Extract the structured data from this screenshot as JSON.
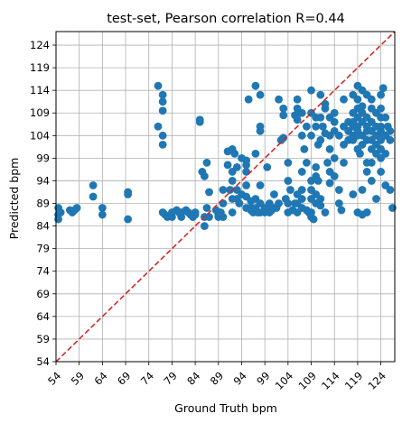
{
  "chart_data": {
    "type": "scatter",
    "title": "test-set, Pearson correlation R=0.44",
    "xlabel": "Ground Truth bpm",
    "ylabel": "Predicted bpm",
    "xlim": [
      54,
      127
    ],
    "ylim": [
      54,
      127
    ],
    "x_ticks": [
      "54",
      "59",
      "64",
      "69",
      "74",
      "79",
      "84",
      "89",
      "94",
      "99",
      "104",
      "109",
      "114",
      "119",
      "124"
    ],
    "y_ticks": [
      "54",
      "59",
      "64",
      "69",
      "74",
      "79",
      "84",
      "89",
      "94",
      "99",
      "104",
      "109",
      "114",
      "119",
      "124"
    ],
    "grid": true,
    "point_color": "#1f77b4",
    "identity_line_color": "#d62728",
    "points": [
      [
        54.5,
        88
      ],
      [
        54.5,
        86.5
      ],
      [
        54.5,
        85.5
      ],
      [
        55,
        87
      ],
      [
        57,
        87.5
      ],
      [
        57.5,
        87
      ],
      [
        58,
        87.5
      ],
      [
        58.5,
        88
      ],
      [
        62,
        93
      ],
      [
        62,
        90.5
      ],
      [
        64,
        88
      ],
      [
        64,
        86.5
      ],
      [
        69.5,
        91.5
      ],
      [
        69.5,
        91
      ],
      [
        69.5,
        85.5
      ],
      [
        76,
        115
      ],
      [
        76,
        106
      ],
      [
        77,
        113
      ],
      [
        77,
        111.5
      ],
      [
        77,
        109.5
      ],
      [
        77,
        104
      ],
      [
        77,
        102
      ],
      [
        77,
        87
      ],
      [
        77.5,
        86.5
      ],
      [
        78,
        86
      ],
      [
        79,
        86
      ],
      [
        79,
        87
      ],
      [
        80,
        87.5
      ],
      [
        80.5,
        87
      ],
      [
        81,
        87
      ],
      [
        81,
        86
      ],
      [
        82,
        87.5
      ],
      [
        82.5,
        87
      ],
      [
        83,
        86.5
      ],
      [
        83.5,
        86
      ],
      [
        84,
        86.5
      ],
      [
        84,
        87
      ],
      [
        85,
        107.5
      ],
      [
        85,
        107
      ],
      [
        85.5,
        96
      ],
      [
        86,
        95
      ],
      [
        86,
        86
      ],
      [
        86,
        84
      ],
      [
        86.5,
        98
      ],
      [
        86.5,
        88
      ],
      [
        87,
        91.5
      ],
      [
        87,
        86
      ],
      [
        88.5,
        87.5
      ],
      [
        89,
        86.5
      ],
      [
        89,
        86
      ],
      [
        89.5,
        87
      ],
      [
        90,
        92
      ],
      [
        90,
        89
      ],
      [
        90,
        86
      ],
      [
        91,
        97.5
      ],
      [
        91,
        100.5
      ],
      [
        91.5,
        92
      ],
      [
        92,
        101
      ],
      [
        92,
        96
      ],
      [
        92,
        94
      ],
      [
        92,
        90
      ],
      [
        92,
        87
      ],
      [
        92.5,
        100
      ],
      [
        93,
        97
      ],
      [
        93,
        92
      ],
      [
        93,
        90
      ],
      [
        93.5,
        89
      ],
      [
        94,
        99
      ],
      [
        94,
        91
      ],
      [
        95,
        98.5
      ],
      [
        95,
        97.5
      ],
      [
        95,
        96
      ],
      [
        95,
        93
      ],
      [
        95,
        90.5
      ],
      [
        95,
        88
      ],
      [
        95.5,
        112
      ],
      [
        96,
        89.5
      ],
      [
        96,
        88
      ],
      [
        96,
        87.5
      ],
      [
        96.5,
        87
      ],
      [
        97,
        115
      ],
      [
        97,
        100
      ],
      [
        97,
        90
      ],
      [
        97,
        88
      ],
      [
        97.5,
        87
      ],
      [
        98,
        113
      ],
      [
        98,
        106
      ],
      [
        98,
        105
      ],
      [
        98,
        93
      ],
      [
        98,
        89
      ],
      [
        98,
        87
      ],
      [
        99,
        87
      ],
      [
        99,
        88
      ],
      [
        99.5,
        97
      ],
      [
        100,
        89
      ],
      [
        100,
        87
      ],
      [
        100,
        88.5
      ],
      [
        100.5,
        87.5
      ],
      [
        101,
        91
      ],
      [
        101,
        88
      ],
      [
        101.5,
        88
      ],
      [
        102,
        112
      ],
      [
        102,
        89
      ],
      [
        102.5,
        103
      ],
      [
        103,
        110
      ],
      [
        103,
        108.5
      ],
      [
        103,
        103.5
      ],
      [
        103.5,
        90
      ],
      [
        104,
        98
      ],
      [
        104,
        94
      ],
      [
        104,
        89
      ],
      [
        104,
        87
      ],
      [
        104.5,
        92
      ],
      [
        105,
        87.5
      ],
      [
        105.5,
        89
      ],
      [
        105.5,
        108.5
      ],
      [
        106,
        112
      ],
      [
        106,
        110
      ],
      [
        106,
        107.5
      ],
      [
        106,
        91
      ],
      [
        106,
        89
      ],
      [
        106,
        87
      ],
      [
        106.5,
        109
      ],
      [
        107,
        109
      ],
      [
        107,
        104
      ],
      [
        107,
        96
      ],
      [
        107,
        92
      ],
      [
        107,
        90
      ],
      [
        107,
        88
      ],
      [
        107.5,
        101
      ],
      [
        108,
        106
      ],
      [
        108,
        98
      ],
      [
        108,
        87.5
      ],
      [
        108.5,
        87
      ],
      [
        109,
        114
      ],
      [
        109,
        109
      ],
      [
        109,
        104
      ],
      [
        109,
        94
      ],
      [
        109,
        92
      ],
      [
        109,
        90
      ],
      [
        109,
        87
      ],
      [
        109,
        86
      ],
      [
        109.5,
        85.5
      ],
      [
        110,
        108
      ],
      [
        110,
        106
      ],
      [
        110,
        97
      ],
      [
        110,
        95
      ],
      [
        110,
        91
      ],
      [
        110,
        89
      ],
      [
        110.5,
        102
      ],
      [
        110.5,
        94
      ],
      [
        111,
        113
      ],
      [
        111,
        108
      ],
      [
        111,
        103
      ],
      [
        111,
        90
      ],
      [
        111,
        88.5
      ],
      [
        111.5,
        106
      ],
      [
        112,
        111
      ],
      [
        112,
        110
      ],
      [
        112,
        104.5
      ],
      [
        112,
        87
      ],
      [
        112.5,
        98
      ],
      [
        113,
        108
      ],
      [
        113,
        104
      ],
      [
        113,
        101
      ],
      [
        113,
        96
      ],
      [
        113,
        93.5
      ],
      [
        114,
        109
      ],
      [
        114,
        107
      ],
      [
        114,
        105
      ],
      [
        114,
        99
      ],
      [
        114,
        95
      ],
      [
        115,
        104
      ],
      [
        115,
        92
      ],
      [
        115,
        89
      ],
      [
        115.5,
        87.5
      ],
      [
        116,
        112
      ],
      [
        116,
        106
      ],
      [
        116,
        102
      ],
      [
        116,
        98
      ],
      [
        117,
        107
      ],
      [
        117,
        105
      ],
      [
        117,
        103
      ],
      [
        118,
        113
      ],
      [
        118,
        109
      ],
      [
        118,
        107
      ],
      [
        118,
        106
      ],
      [
        118,
        104
      ],
      [
        118,
        103
      ],
      [
        118,
        91
      ],
      [
        119,
        115
      ],
      [
        119,
        112
      ],
      [
        119,
        110
      ],
      [
        119,
        108
      ],
      [
        119,
        106
      ],
      [
        119,
        105
      ],
      [
        119,
        104
      ],
      [
        119,
        101
      ],
      [
        119,
        87
      ],
      [
        119.5,
        100
      ],
      [
        120,
        114
      ],
      [
        120,
        110.5
      ],
      [
        120,
        109
      ],
      [
        120,
        107
      ],
      [
        120,
        104
      ],
      [
        120,
        102
      ],
      [
        120,
        92
      ],
      [
        120,
        86.5
      ],
      [
        121,
        113
      ],
      [
        121,
        108
      ],
      [
        121,
        106
      ],
      [
        121,
        105
      ],
      [
        121,
        103
      ],
      [
        121,
        98
      ],
      [
        121,
        96
      ],
      [
        121,
        87
      ],
      [
        122,
        112
      ],
      [
        122,
        110
      ],
      [
        122,
        107
      ],
      [
        122,
        105
      ],
      [
        122,
        103
      ],
      [
        122,
        101
      ],
      [
        122,
        98
      ],
      [
        122,
        94
      ],
      [
        123,
        109
      ],
      [
        123,
        106
      ],
      [
        123,
        104
      ],
      [
        123,
        102
      ],
      [
        123,
        100
      ],
      [
        123,
        90
      ],
      [
        124,
        113
      ],
      [
        124,
        110
      ],
      [
        124,
        108
      ],
      [
        124,
        106
      ],
      [
        124,
        105
      ],
      [
        124,
        104
      ],
      [
        124,
        103
      ],
      [
        124,
        101
      ],
      [
        124,
        99
      ],
      [
        124,
        96
      ],
      [
        124.5,
        114.5
      ],
      [
        125,
        108
      ],
      [
        125,
        104
      ],
      [
        125,
        100
      ],
      [
        125,
        93
      ],
      [
        125.5,
        106
      ],
      [
        126,
        105
      ],
      [
        126,
        103
      ],
      [
        126,
        92
      ],
      [
        126.5,
        88
      ]
    ]
  }
}
